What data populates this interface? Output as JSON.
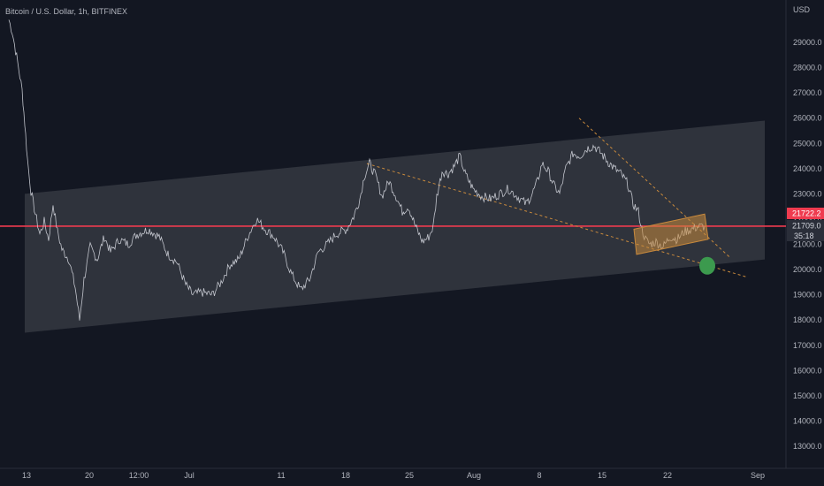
{
  "header": {
    "title": "Bitcoin / U.S. Dollar, 1h, BITFINEX",
    "currency": "USD"
  },
  "price_scale": {
    "labels": [
      "29000.0",
      "28000.0",
      "27000.0",
      "26000.0",
      "25000.0",
      "24000.0",
      "23000.0",
      "22000.0",
      "21000.0",
      "20000.0",
      "19000.0",
      "18000.0",
      "17000.0",
      "16000.0",
      "15000.0",
      "14000.0",
      "13000.0"
    ],
    "current_price": "21722.2",
    "last_price": "21709.0",
    "countdown": "35:18"
  },
  "colors": {
    "background": "#131722",
    "price_line": "#ef3b4f",
    "trendline": "#c98a3c",
    "flag": "#c98a3c",
    "target": "#3c9a4e",
    "series": "#d1d4dc",
    "channel": "#ffffff"
  },
  "chart_data": {
    "type": "line",
    "title": "Bitcoin / U.S. Dollar, 1h, BITFINEX",
    "xlabel": "",
    "ylabel": "USD",
    "ylim": [
      12500,
      30600
    ],
    "x_ticks": [
      "13",
      "20",
      "12:00",
      "Jul",
      "11",
      "18",
      "25",
      "Aug",
      "8",
      "15",
      "22",
      "Sep"
    ],
    "series": [
      {
        "values": [
          [
            10,
            29900
          ],
          [
            14,
            29400
          ],
          [
            20,
            28200
          ],
          [
            25,
            27100
          ],
          [
            28,
            25800
          ],
          [
            31,
            24400
          ],
          [
            35,
            23100
          ],
          [
            40,
            22200
          ],
          [
            45,
            21400
          ],
          [
            50,
            21900
          ],
          [
            55,
            21200
          ],
          [
            60,
            22600
          ],
          [
            65,
            21500
          ],
          [
            70,
            20800
          ],
          [
            78,
            20400
          ],
          [
            85,
            19300
          ],
          [
            90,
            18000
          ],
          [
            95,
            19600
          ],
          [
            102,
            20900
          ],
          [
            110,
            20400
          ],
          [
            118,
            21300
          ],
          [
            125,
            20700
          ],
          [
            135,
            21200
          ],
          [
            145,
            21000
          ],
          [
            155,
            21400
          ],
          [
            168,
            21600
          ],
          [
            180,
            21300
          ],
          [
            190,
            20600
          ],
          [
            200,
            20300
          ],
          [
            210,
            19400
          ],
          [
            218,
            19000
          ],
          [
            228,
            19100
          ],
          [
            240,
            19000
          ],
          [
            250,
            19500
          ],
          [
            260,
            20200
          ],
          [
            270,
            20400
          ],
          [
            280,
            21300
          ],
          [
            290,
            22000
          ],
          [
            300,
            21600
          ],
          [
            310,
            21300
          ],
          [
            320,
            20700
          ],
          [
            330,
            19800
          ],
          [
            340,
            19200
          ],
          [
            350,
            19600
          ],
          [
            360,
            20700
          ],
          [
            370,
            21000
          ],
          [
            380,
            21400
          ],
          [
            392,
            21600
          ],
          [
            400,
            22100
          ],
          [
            407,
            22800
          ],
          [
            412,
            23700
          ],
          [
            418,
            24200
          ],
          [
            425,
            23700
          ],
          [
            432,
            22900
          ],
          [
            440,
            23500
          ],
          [
            448,
            22900
          ],
          [
            455,
            22300
          ],
          [
            462,
            22500
          ],
          [
            470,
            21700
          ],
          [
            478,
            21100
          ],
          [
            485,
            21300
          ],
          [
            490,
            21700
          ],
          [
            494,
            22900
          ],
          [
            500,
            23900
          ],
          [
            507,
            23800
          ],
          [
            514,
            24100
          ],
          [
            520,
            24500
          ],
          [
            526,
            23800
          ],
          [
            535,
            23200
          ],
          [
            545,
            22900
          ],
          [
            555,
            22800
          ],
          [
            565,
            23000
          ],
          [
            575,
            23200
          ],
          [
            585,
            22900
          ],
          [
            595,
            22600
          ],
          [
            602,
            23000
          ],
          [
            608,
            23500
          ],
          [
            613,
            24200
          ],
          [
            620,
            23900
          ],
          [
            627,
            23300
          ],
          [
            633,
            23000
          ],
          [
            640,
            24000
          ],
          [
            648,
            24600
          ],
          [
            656,
            24500
          ],
          [
            664,
            24800
          ],
          [
            672,
            24900
          ],
          [
            680,
            24600
          ],
          [
            687,
            24300
          ],
          [
            695,
            24000
          ],
          [
            702,
            23800
          ],
          [
            710,
            23400
          ],
          [
            716,
            22600
          ],
          [
            722,
            22300
          ],
          [
            726,
            21600
          ],
          [
            730,
            21200
          ],
          [
            735,
            21000
          ],
          [
            742,
            21100
          ],
          [
            750,
            20900
          ],
          [
            758,
            21300
          ],
          [
            766,
            21200
          ],
          [
            774,
            21500
          ],
          [
            782,
            21600
          ],
          [
            790,
            21700
          ],
          [
            797,
            21709
          ]
        ]
      }
    ],
    "annotations": {
      "horizontal_line": 21720,
      "channel": {
        "upper": [
          [
            28,
            23000
          ],
          [
            865,
            25900
          ]
        ],
        "lower": [
          [
            28,
            17500
          ],
          [
            865,
            20400
          ]
        ]
      },
      "trendlines": [
        {
          "points": [
            [
              415,
              24200
            ],
            [
              845,
              19700
            ]
          ]
        },
        {
          "points": [
            [
              655,
              26000
            ],
            [
              825,
              20500
            ]
          ]
        }
      ],
      "flag": [
        [
          717,
          21600
        ],
        [
          797,
          22200
        ],
        [
          801,
          21200
        ],
        [
          720,
          20600
        ]
      ],
      "target": [
        800,
        20150
      ]
    }
  }
}
